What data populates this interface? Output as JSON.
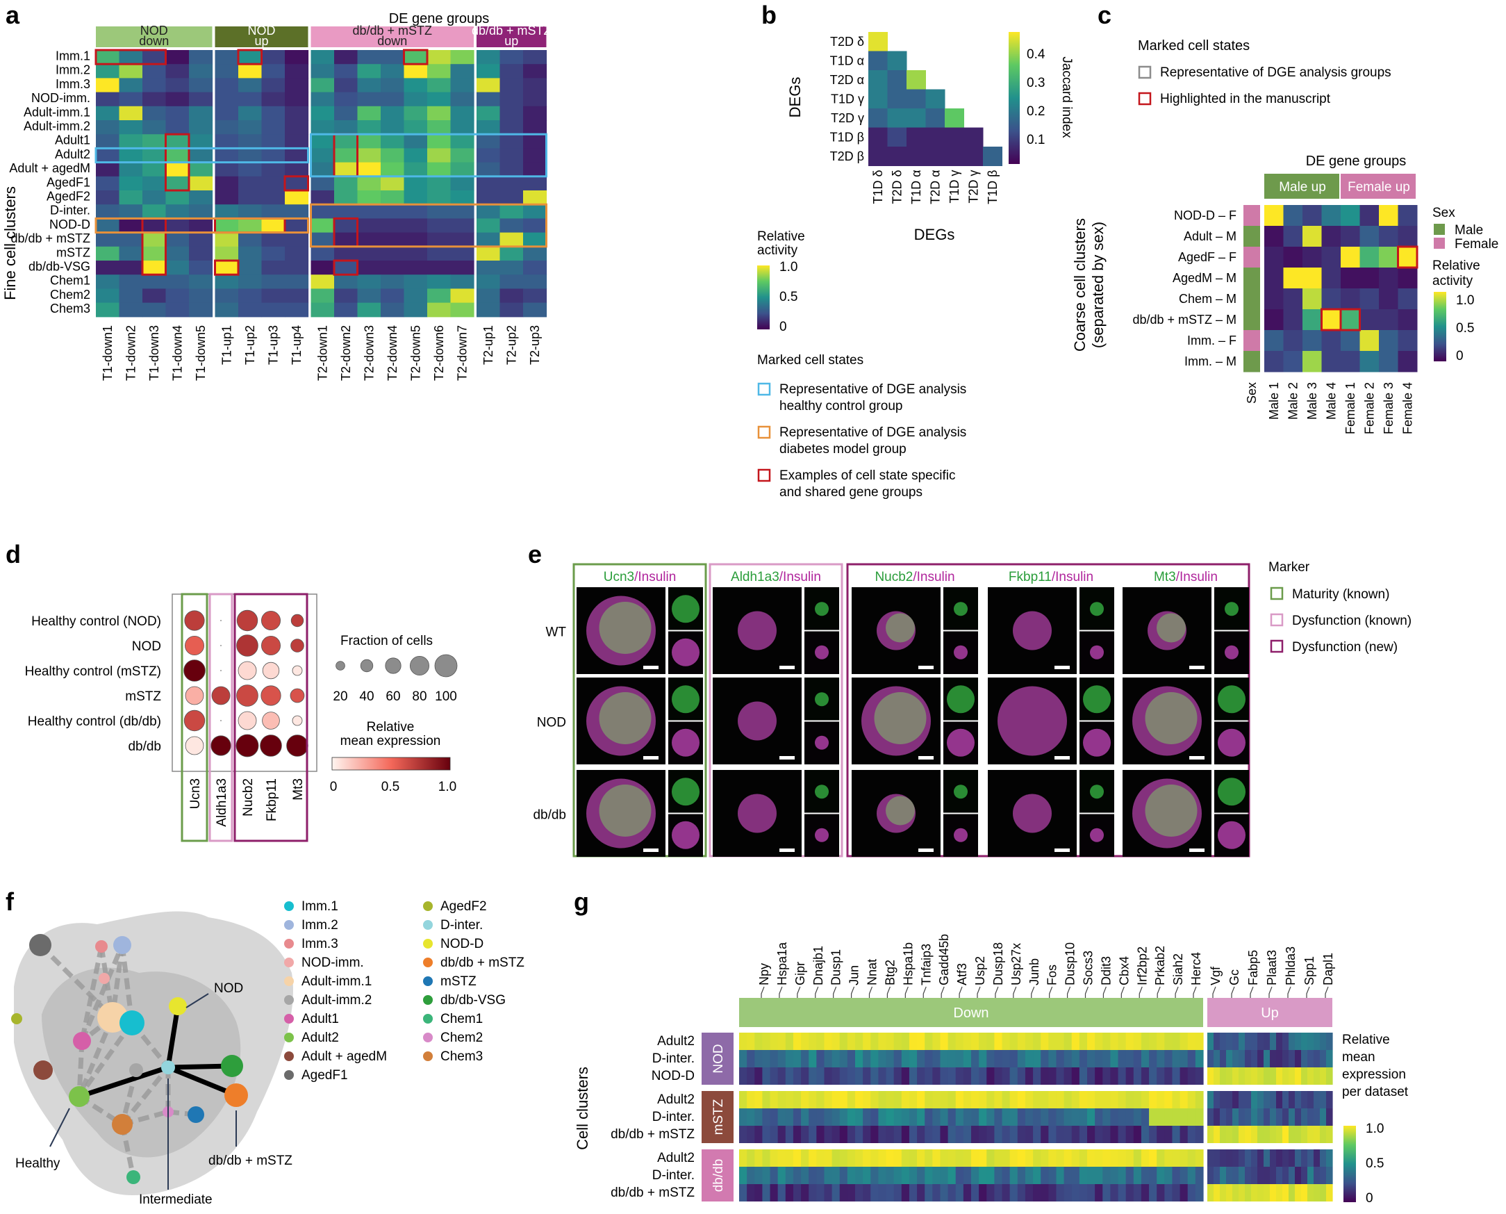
{
  "panel_labels": {
    "a": "a",
    "b": "b",
    "c": "c",
    "d": "d",
    "e": "e",
    "f": "f",
    "g": "g"
  },
  "colors": {
    "nod_down": "#9cc87a",
    "nod_up": "#5c7028",
    "db_down": "#e99ac3",
    "db_up": "#8f2377",
    "male": "#6e9a4c",
    "female": "#cf7aa8",
    "legend_blue": "#4fb8e6",
    "legend_orange": "#e8913a",
    "legend_red": "#c4161c",
    "legend_gray": "#8c8c8c",
    "maturity": "#6b9c4b",
    "dys_known": "#d99ac6",
    "dys_new": "#8e1f6a"
  },
  "panel_a": {
    "title": "DE gene groups",
    "group_headers": [
      {
        "label": "NOD\ndown",
        "color": "nod_down",
        "span": [
          0,
          5
        ],
        "text_color": "#222"
      },
      {
        "label": "NOD\nup",
        "color": "nod_up",
        "span": [
          5,
          9
        ],
        "text_color": "#ffffff"
      },
      {
        "label": "db/db + mSTZ\ndown",
        "color": "db_down",
        "span": [
          9,
          16
        ],
        "text_color": "#222"
      },
      {
        "label": "db/db + mSTZ\nup",
        "color": "db_up",
        "span": [
          16,
          19
        ],
        "text_color": "#ffffff"
      }
    ],
    "ylabel": "Fine cell clusters",
    "rows": [
      "Imm.1",
      "Imm.2",
      "Imm.3",
      "NOD-imm.",
      "Adult-imm.1",
      "Adult-imm.2",
      "Adult1",
      "Adult2",
      "Adult + agedM",
      "AgedF1",
      "AgedF2",
      "D-inter.",
      "NOD-D",
      "db/db + mSTZ",
      "mSTZ",
      "db/db-VSG",
      "Chem1",
      "Chem2",
      "Chem3"
    ],
    "cols": [
      "T1-down1",
      "T1-down2",
      "T1-down3",
      "T1-down4",
      "T1-down5",
      "T1-up1",
      "T1-up2",
      "T1-up3",
      "T1-up4",
      "T2-down1",
      "T2-down2",
      "T2-down3",
      "T2-down4",
      "T2-down5",
      "T2-down6",
      "T2-down7",
      "T2-up1",
      "T2-up2",
      "T2-up3"
    ],
    "values": [
      [
        0.65,
        0.4,
        0.2,
        0.05,
        0.3,
        0.3,
        0.5,
        0.2,
        0.05,
        0.45,
        0.1,
        0.3,
        0.3,
        0.7,
        0.9,
        0.8,
        0.45,
        0.25,
        0.2
      ],
      [
        0.55,
        0.85,
        0.25,
        0.15,
        0.35,
        0.3,
        1.0,
        0.25,
        0.1,
        0.4,
        0.25,
        0.55,
        0.4,
        1.0,
        0.8,
        0.4,
        0.5,
        0.2,
        0.1
      ],
      [
        1.0,
        0.4,
        0.25,
        0.2,
        0.3,
        0.25,
        0.35,
        0.2,
        0.1,
        0.6,
        0.2,
        0.4,
        0.35,
        0.5,
        0.6,
        0.4,
        0.95,
        0.2,
        0.15
      ],
      [
        0.2,
        0.25,
        0.15,
        0.1,
        0.2,
        0.25,
        0.25,
        0.15,
        0.1,
        0.4,
        0.25,
        0.3,
        0.3,
        0.45,
        0.5,
        0.35,
        0.3,
        0.2,
        0.15
      ],
      [
        0.45,
        0.95,
        0.3,
        0.25,
        0.4,
        0.25,
        0.4,
        0.25,
        0.15,
        0.5,
        0.3,
        0.7,
        0.45,
        0.6,
        0.8,
        0.45,
        0.55,
        0.2,
        0.1
      ],
      [
        0.35,
        0.45,
        0.35,
        0.25,
        0.4,
        0.3,
        0.35,
        0.25,
        0.15,
        0.45,
        0.4,
        0.55,
        0.45,
        0.55,
        0.7,
        0.45,
        0.45,
        0.2,
        0.1
      ],
      [
        0.3,
        0.55,
        0.6,
        0.6,
        0.45,
        0.25,
        0.3,
        0.25,
        0.15,
        0.5,
        0.6,
        0.7,
        0.55,
        0.4,
        0.75,
        0.55,
        0.3,
        0.2,
        0.1
      ],
      [
        0.25,
        0.5,
        0.55,
        0.7,
        0.4,
        0.25,
        0.3,
        0.25,
        0.15,
        0.45,
        0.7,
        0.85,
        0.7,
        0.5,
        0.85,
        0.65,
        0.25,
        0.2,
        0.1
      ],
      [
        0.1,
        0.45,
        0.55,
        1.0,
        0.6,
        0.2,
        0.25,
        0.2,
        0.15,
        0.4,
        0.95,
        1.0,
        0.75,
        0.55,
        0.75,
        0.6,
        0.3,
        0.2,
        0.1
      ],
      [
        0.25,
        0.5,
        0.45,
        0.6,
        0.95,
        0.1,
        0.2,
        0.2,
        0.2,
        0.3,
        0.6,
        0.8,
        0.9,
        0.5,
        0.55,
        0.45,
        0.2,
        0.2,
        0.2
      ],
      [
        0.2,
        0.55,
        0.4,
        0.55,
        0.4,
        0.1,
        0.2,
        0.2,
        1.0,
        0.15,
        0.6,
        0.75,
        0.7,
        0.5,
        0.55,
        0.5,
        0.2,
        0.2,
        0.95
      ],
      [
        0.3,
        0.35,
        0.55,
        0.4,
        0.35,
        0.4,
        0.35,
        0.3,
        0.3,
        0.25,
        0.25,
        0.25,
        0.25,
        0.25,
        0.3,
        0.3,
        0.4,
        0.55,
        0.45
      ],
      [
        0.35,
        0.05,
        0.1,
        0.15,
        0.1,
        0.75,
        0.8,
        1.0,
        0.2,
        0.75,
        0.2,
        0.15,
        0.15,
        0.15,
        0.2,
        0.2,
        0.55,
        0.3,
        0.25
      ],
      [
        0.3,
        0.3,
        0.85,
        0.3,
        0.2,
        0.9,
        0.3,
        0.2,
        0.2,
        0.3,
        0.1,
        0.1,
        0.1,
        0.1,
        0.15,
        0.15,
        0.4,
        0.95,
        0.5
      ],
      [
        0.65,
        0.35,
        0.8,
        0.35,
        0.2,
        0.85,
        0.35,
        0.25,
        0.2,
        0.25,
        0.15,
        0.15,
        0.15,
        0.15,
        0.2,
        0.2,
        0.95,
        0.55,
        0.35
      ],
      [
        0.1,
        0.1,
        1.0,
        0.4,
        0.25,
        1.0,
        0.35,
        0.2,
        0.2,
        0.05,
        0.25,
        0.1,
        0.1,
        0.1,
        0.1,
        0.1,
        0.35,
        0.35,
        0.25
      ],
      [
        0.4,
        0.3,
        0.3,
        0.3,
        0.35,
        0.4,
        0.35,
        0.3,
        0.3,
        0.95,
        0.35,
        0.4,
        0.35,
        0.4,
        0.45,
        0.4,
        0.4,
        0.3,
        0.3
      ],
      [
        0.45,
        0.3,
        0.15,
        0.25,
        0.3,
        0.3,
        0.25,
        0.2,
        0.2,
        0.65,
        0.2,
        0.35,
        0.25,
        0.4,
        0.65,
        0.95,
        0.35,
        0.15,
        0.2
      ],
      [
        0.55,
        0.3,
        0.3,
        0.25,
        0.3,
        0.35,
        0.25,
        0.25,
        0.25,
        0.6,
        0.25,
        0.55,
        0.3,
        0.4,
        0.85,
        0.8,
        0.35,
        0.2,
        0.3
      ]
    ],
    "red_boxes": [
      [
        0,
        0,
        0,
        2
      ],
      [
        0,
        6,
        0,
        6
      ],
      [
        0,
        13,
        0,
        13
      ],
      [
        6,
        3,
        9,
        3
      ],
      [
        6,
        10,
        8,
        10
      ],
      [
        9,
        8,
        9,
        8
      ],
      [
        12,
        2,
        15,
        2
      ],
      [
        12,
        5,
        12,
        7
      ],
      [
        12,
        10,
        13,
        10
      ],
      [
        15,
        5,
        15,
        5
      ],
      [
        15,
        10,
        15,
        10
      ]
    ],
    "blue_box": [
      7,
      0,
      7,
      8
    ],
    "blue_box2": [
      6,
      9,
      8,
      18
    ],
    "orange_box": [
      12,
      0,
      12,
      8
    ],
    "orange_box2": [
      11,
      9,
      13,
      18
    ],
    "colorbar": {
      "title": "Relative\nactivity",
      "ticks": [
        "1.0",
        "0.5",
        "0"
      ]
    },
    "legend_title": "Marked cell states",
    "legend": [
      {
        "label": "Representative of DGE analysis\nhealthy control group",
        "color": "legend_blue"
      },
      {
        "label": "Representative of DGE analysis\ndiabetes model group",
        "color": "legend_orange"
      },
      {
        "label": "Examples of cell state specific\nand shared gene groups",
        "color": "legend_red"
      }
    ]
  },
  "panel_b": {
    "labels": [
      "T2D δ",
      "T1D α",
      "T2D α",
      "T1D γ",
      "T2D γ",
      "T1D β",
      "T2D β"
    ],
    "xlabels": [
      "T1D δ",
      "T2D δ",
      "T1D α",
      "T2D α",
      "T1D γ",
      "T2D γ",
      "T1D β"
    ],
    "values": [
      [
        0.45
      ],
      [
        0.15,
        0.2
      ],
      [
        0.2,
        0.15,
        0.4
      ],
      [
        0.2,
        0.15,
        0.15,
        0.2
      ],
      [
        0.15,
        0.2,
        0.2,
        0.15,
        0.35
      ],
      [
        0.05,
        0.1,
        0.05,
        0.05,
        0.05,
        0.05
      ],
      [
        0.05,
        0.05,
        0.05,
        0.05,
        0.05,
        0.05,
        0.15
      ]
    ],
    "xlabel": "DEGs",
    "ylabel": "DEGs",
    "colorbar": {
      "title": "Jaccard index",
      "ticks": [
        "0.4",
        "0.3",
        "0.2",
        "0.1"
      ]
    }
  },
  "panel_c": {
    "legend_title": "Marked cell states",
    "legend": [
      {
        "label": "Representative of DGE analysis groups",
        "color": "legend_gray"
      },
      {
        "label": "Highlighted in the manuscript",
        "color": "legend_red"
      }
    ],
    "title": "DE gene groups",
    "headers": [
      {
        "label": "Male up",
        "color": "male"
      },
      {
        "label": "Female up",
        "color": "female"
      }
    ],
    "ylabel": "Coarse cell clusters\n(separated by sex)",
    "rows": [
      "NOD-D – F",
      "Adult – M",
      "AgedF – F",
      "AgedM – M",
      "Chem – M",
      "db/db + mSTZ – M",
      "Imm. – F",
      "Imm. – M"
    ],
    "sex": [
      "F",
      "M",
      "F",
      "M",
      "M",
      "M",
      "F",
      "M"
    ],
    "cols": [
      "Male 1",
      "Male 2",
      "Male 3",
      "Male 4",
      "Female 1",
      "Female 2",
      "Female 3",
      "Female 4"
    ],
    "sex_col_label": "Sex",
    "values": [
      [
        1.0,
        0.3,
        0.2,
        0.4,
        0.5,
        0.15,
        1.0,
        0.2
      ],
      [
        0.05,
        0.2,
        0.95,
        0.1,
        0.15,
        0.3,
        0.2,
        0.15
      ],
      [
        0.1,
        0.05,
        0.1,
        0.15,
        1.0,
        0.65,
        0.8,
        1.0
      ],
      [
        0.1,
        1.0,
        1.0,
        0.15,
        0.05,
        0.05,
        0.1,
        0.05
      ],
      [
        0.1,
        0.15,
        0.9,
        0.2,
        0.15,
        0.2,
        0.1,
        0.2
      ],
      [
        0.05,
        0.15,
        0.6,
        1.0,
        0.65,
        0.15,
        0.15,
        0.1
      ],
      [
        0.3,
        0.2,
        0.3,
        0.2,
        0.3,
        0.95,
        0.3,
        0.2
      ],
      [
        0.2,
        0.25,
        0.85,
        0.2,
        0.2,
        0.4,
        0.3,
        0.1
      ]
    ],
    "gray_box": [
      2,
      0,
      3,
      7
    ],
    "red_boxes": [
      [
        2,
        7
      ],
      [
        5,
        3
      ],
      [
        5,
        4
      ]
    ],
    "sex_legend_title": "Sex",
    "sex_legend": [
      {
        "label": "Male",
        "color": "male"
      },
      {
        "label": "Female",
        "color": "female"
      }
    ],
    "colorbar": {
      "title": "Relative\nactivity",
      "ticks": [
        "1.0",
        "0.5",
        "0"
      ]
    }
  },
  "panel_d": {
    "rows": [
      "Healthy control (NOD)",
      "NOD",
      "Healthy control (mSTZ)",
      "mSTZ",
      "Healthy control (db/db)",
      "db/db"
    ],
    "genes": [
      "Ucn3",
      "Aldh1a3",
      "Nucb2",
      "Fkbp11",
      "Mt3"
    ],
    "fraction": [
      [
        85,
        0,
        90,
        80,
        40
      ],
      [
        80,
        0,
        95,
        80,
        45
      ],
      [
        95,
        0,
        75,
        65,
        25
      ],
      [
        75,
        75,
        95,
        85,
        50
      ],
      [
        90,
        0,
        75,
        70,
        25
      ],
      [
        75,
        85,
        100,
        95,
        95
      ]
    ],
    "expression": [
      [
        0.7,
        0,
        0.7,
        0.65,
        0.7
      ],
      [
        0.55,
        0,
        0.75,
        0.65,
        0.7
      ],
      [
        1.0,
        0,
        0.1,
        0.1,
        0.05
      ],
      [
        0.25,
        0.7,
        0.65,
        0.6,
        0.6
      ],
      [
        0.65,
        0,
        0.1,
        0.2,
        0.05
      ],
      [
        0.05,
        1.0,
        1.0,
        1.0,
        1.0
      ]
    ],
    "size_legend_title": "Fraction of cells",
    "size_ticks": [
      "20",
      "40",
      "60",
      "80",
      "100"
    ],
    "color_title": "Relative\nmean expression",
    "color_ticks": [
      "0",
      "0.5",
      "1.0"
    ]
  },
  "panel_e": {
    "headers": [
      {
        "gene": "Ucn3",
        "rest": "/Insulin",
        "box": "maturity"
      },
      {
        "gene": "Aldh1a3",
        "rest": "/Insulin",
        "box": "dys_known"
      },
      {
        "gene": "Nucb2",
        "rest": "/Insulin",
        "box": "dys_new"
      },
      {
        "gene": "Fkbp11",
        "rest": "/Insulin",
        "box": "dys_new"
      },
      {
        "gene": "Mt3",
        "rest": "/Insulin",
        "box": "dys_new"
      }
    ],
    "rows": [
      "WT",
      "NOD",
      "db/db"
    ],
    "legend_title": "Marker",
    "legend": [
      {
        "label": "Maturity (known)",
        "color": "maturity"
      },
      {
        "label": "Dysfunction (known)",
        "color": "dys_known"
      },
      {
        "label": "Dysfunction (new)",
        "color": "dys_new"
      }
    ]
  },
  "panel_f": {
    "legend_col1": [
      {
        "label": "Imm.1",
        "color": "#17becf"
      },
      {
        "label": "Imm.2",
        "color": "#9fb5dd"
      },
      {
        "label": "Imm.3",
        "color": "#e88a8e"
      },
      {
        "label": "NOD-imm.",
        "color": "#f1a8a8"
      },
      {
        "label": "Adult-imm.1",
        "color": "#f6d3a8"
      },
      {
        "label": "Adult-imm.2",
        "color": "#a6a6a6"
      },
      {
        "label": "Adult1",
        "color": "#d55fa8"
      },
      {
        "label": "Adult2",
        "color": "#7cc24a"
      },
      {
        "label": "Adult + agedM",
        "color": "#8c4a3c"
      },
      {
        "label": "AgedF1",
        "color": "#6b6b6b"
      }
    ],
    "legend_col2": [
      {
        "label": "AgedF2",
        "color": "#a7b52c"
      },
      {
        "label": "D-inter.",
        "color": "#93d5dd"
      },
      {
        "label": "NOD-D",
        "color": "#e7e52e"
      },
      {
        "label": "db/db + mSTZ",
        "color": "#ee7e2a"
      },
      {
        "label": "mSTZ",
        "color": "#1f77b4"
      },
      {
        "label": "db/db-VSG",
        "color": "#2e9e3c"
      },
      {
        "label": "Chem1",
        "color": "#3bb57a"
      },
      {
        "label": "Chem2",
        "color": "#d88ac8"
      },
      {
        "label": "Chem3",
        "color": "#d27f3a"
      }
    ],
    "annotations": [
      "NOD",
      "Healthy",
      "Intermediate",
      "db/db + mSTZ"
    ]
  },
  "panel_g": {
    "genes_down": [
      "Npy",
      "Hspa1a",
      "Gipr",
      "Dnajb1",
      "Dusp1",
      "Jun",
      "Nnat",
      "Btg2",
      "Hspa1b",
      "Tnfaip3",
      "Gadd45b",
      "Atf3",
      "Usp2",
      "Dusp18",
      "Usp27x",
      "Junb",
      "Fos",
      "Dusp10",
      "Socs3",
      "Ddit3",
      "Cbx4",
      "Irf2bp2",
      "Prkab2",
      "Siah2",
      "Herc4"
    ],
    "genes_up": [
      "Vgf",
      "Gc",
      "Fabp5",
      "Plaat3",
      "Phlda3",
      "Spp1",
      "Dapl1"
    ],
    "down_label": "Down",
    "up_label": "Up",
    "datasets": [
      {
        "name": "NOD",
        "color": "#8e6aa8",
        "rows": [
          "Adult2",
          "D-inter.",
          "NOD-D"
        ]
      },
      {
        "name": "mSTZ",
        "color": "#8c4a3c",
        "rows": [
          "Adult2",
          "D-inter.",
          "db/db + mSTZ"
        ]
      },
      {
        "name": "db/db",
        "color": "#d27ab0",
        "rows": [
          "Adult2",
          "D-inter.",
          "db/db + mSTZ"
        ]
      }
    ],
    "ylabel": "Cell clusters",
    "colorbar": {
      "title": "Relative\nmean\nexpression\nper dataset",
      "ticks": [
        "1.0",
        "0.5",
        "0"
      ]
    }
  }
}
